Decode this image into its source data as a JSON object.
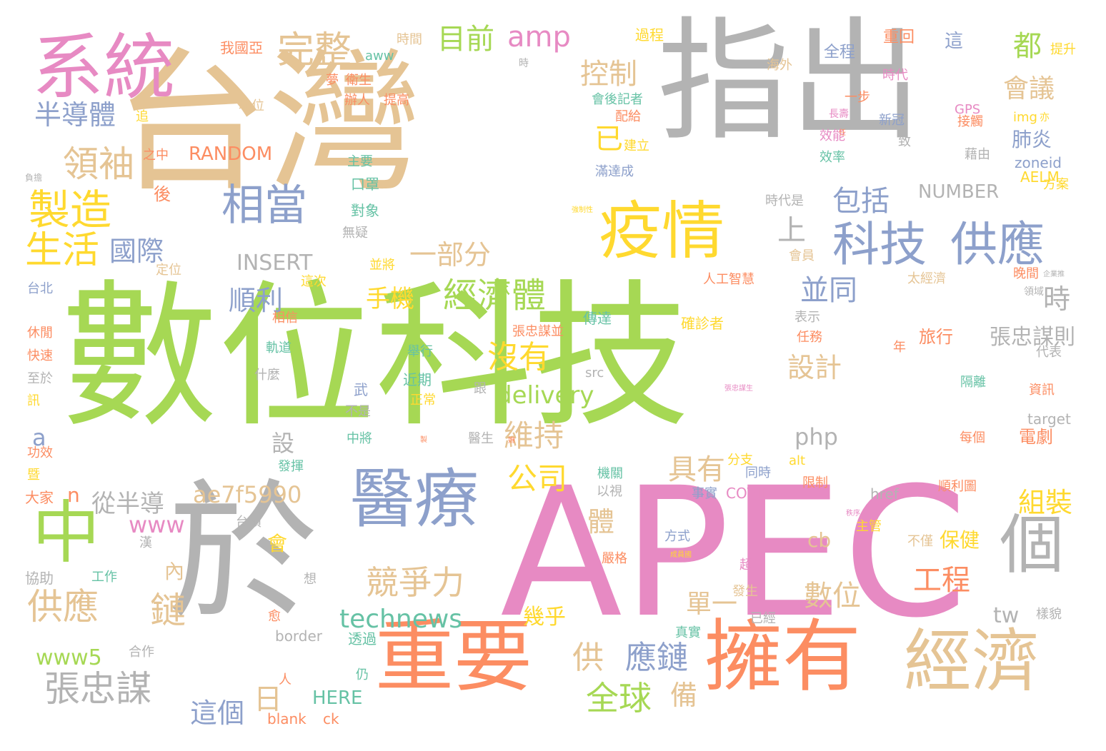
{
  "palette": {
    "green": "#a6d854",
    "tan": "#e5c494",
    "gray": "#b3b3b3",
    "pink": "#e78ac3",
    "orange": "#fc8d62",
    "blue": "#8da0cb",
    "yellow": "#ffd92f",
    "teal": "#66c2a5"
  },
  "words": [
    "數位科技",
    "台灣",
    "指出",
    "APEC",
    "於",
    "系統",
    "重要",
    "擁有",
    "經濟",
    "醫療",
    "疫情",
    "中",
    "科技",
    "供應",
    "個",
    "製造",
    "領袖",
    "生活",
    "半導體",
    "相當",
    "完整",
    "目前",
    "amp",
    "都",
    "會議",
    "控制",
    "已",
    "上",
    "包括",
    "一部分",
    "國際",
    "經濟體",
    "並同",
    "時",
    "順利",
    "INSERT",
    "手機",
    "沒有",
    "維持",
    "公司",
    "delivery",
    "設計",
    "張忠謀則",
    "具有",
    "php",
    "數位",
    "工程",
    "組裝",
    "ae7f5990",
    "從半導",
    "www",
    "體",
    "競爭力",
    "供應",
    "鏈",
    "張忠謀",
    "日",
    "這個",
    "全球",
    "備",
    "technews",
    "幾乎",
    "供",
    "應鏈",
    "www5",
    "HERE",
    "tw",
    "cb",
    "單一",
    "內",
    "設",
    "會",
    "n",
    "a",
    "肺炎",
    "NUMBER",
    "RANDOM",
    "GPS",
    "zoneid",
    "AELM",
    "保健",
    "旅行",
    "電劇",
    "border",
    "blank",
    "ck",
    "COVID",
    "href",
    "target",
    "src",
    "img",
    "alt",
    "aww",
    "我國亞",
    "時間",
    "過程",
    "重回",
    "這",
    "全程",
    "提升",
    "夢",
    "衛生",
    "提高",
    "辦人",
    "地位",
    "追",
    "之中",
    "後",
    "定位",
    "台北",
    "休閒",
    "快速",
    "至於",
    "訊",
    "功效",
    "暨",
    "大家",
    "協助",
    "漢",
    "工作",
    "合作",
    "人",
    "仍",
    "透過",
    "無疑",
    "口罩",
    "對象",
    "主要",
    "並將",
    "這次",
    "相信",
    "軌道",
    "什麼",
    "武",
    "近期",
    "正常",
    "中將",
    "不是",
    "跟",
    "醫生",
    "發揮",
    "以視",
    "機關",
    "台積",
    "方式",
    "嚴格",
    "成員國",
    "超",
    "發生",
    "真實",
    "已經",
    "愈",
    "想",
    "會後記者",
    "配給",
    "建立",
    "滿達成",
    "傳達",
    "確診者",
    "張忠謀並",
    "舉行",
    "分支",
    "限制",
    "事實",
    "同時",
    "主管",
    "不僅",
    "每個",
    "順利圖",
    "隔離",
    "代表",
    "資訊",
    "樣貌",
    "張忠謀生",
    "海外",
    "時代",
    "新冠",
    "致",
    "藉由",
    "效率",
    "效能",
    "接觸",
    "方案",
    "時代是",
    "會員",
    "人工智慧",
    "太經濟",
    "晚間",
    "企業推",
    "領域",
    "表示",
    "任務",
    "年",
    "一步",
    "負擔",
    "強制性",
    "亦",
    "製",
    "嫵",
    "秩序",
    "時",
    "長壽",
    "任"
  ]
}
